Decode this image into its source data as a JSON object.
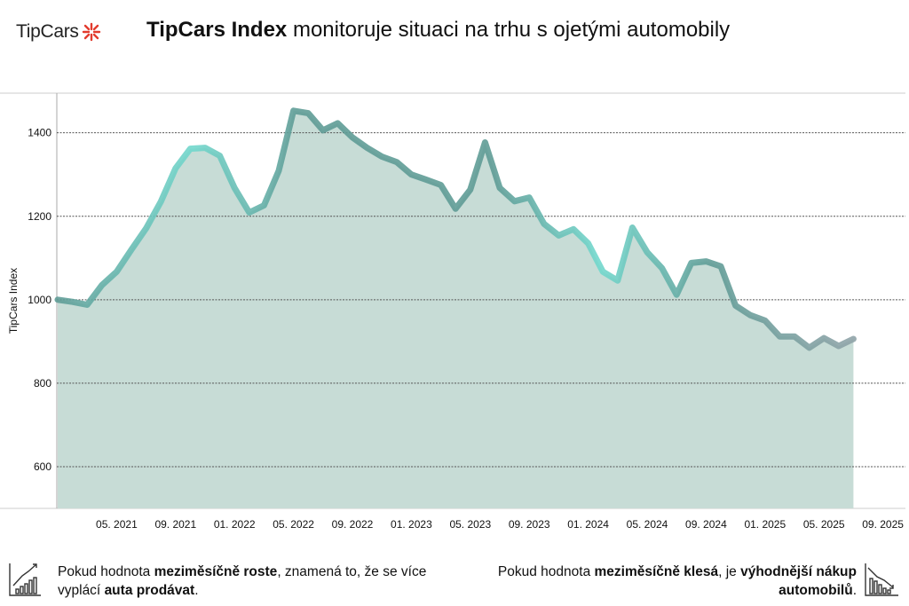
{
  "header": {
    "logo_text": "TipCars",
    "title_bold": "TipCars Index",
    "title_rest": " monitoruje situaci na trhu s ojetými automobily"
  },
  "colors": {
    "fill": "#c7dcd6",
    "line_dark": "#5f9c96",
    "line_bright": "#72d8cd",
    "line_gray": "#8fa3a8",
    "logo_accent": "#e23b2e"
  },
  "chart_data": {
    "type": "area",
    "title": "",
    "xlabel": "",
    "ylabel": "TipCars Index",
    "ylim": [
      500,
      1495
    ],
    "yticks": [
      600,
      800,
      1000,
      1200,
      1400
    ],
    "grid": "horizontal dotted",
    "x_tick_labels": [
      "05. 2021",
      "09. 2021",
      "01. 2022",
      "05. 2022",
      "09. 2022",
      "01. 2023",
      "05. 2023",
      "09. 2023",
      "01. 2024",
      "05. 2024",
      "09. 2024",
      "01. 2025",
      "05. 2025",
      "09. 2025"
    ],
    "x_start": "01. 2021",
    "x_step": "1 month",
    "values": [
      1000,
      995,
      988,
      1035,
      1067,
      1120,
      1171,
      1235,
      1315,
      1362,
      1364,
      1345,
      1268,
      1209,
      1226,
      1309,
      1453,
      1447,
      1406,
      1423,
      1389,
      1364,
      1343,
      1330,
      1300,
      1288,
      1275,
      1218,
      1264,
      1377,
      1268,
      1236,
      1245,
      1182,
      1154,
      1169,
      1135,
      1067,
      1046,
      1173,
      1114,
      1076,
      1012,
      1088,
      1092,
      1080,
      986,
      963,
      950,
      912,
      912,
      885,
      908,
      889,
      906
    ]
  },
  "footer": {
    "left": {
      "t1": "Pokud hodnota ",
      "b1": "meziměsíčně roste",
      "t2": ", znamená to, že se více vyplácí ",
      "b2": "auta prodávat",
      "t3": "."
    },
    "right": {
      "t1": "Pokud hodnota ",
      "b1": "meziměsíčně klesá",
      "t2": ", je ",
      "b2": "výhodnější nákup automobilů",
      "t3": "."
    }
  }
}
